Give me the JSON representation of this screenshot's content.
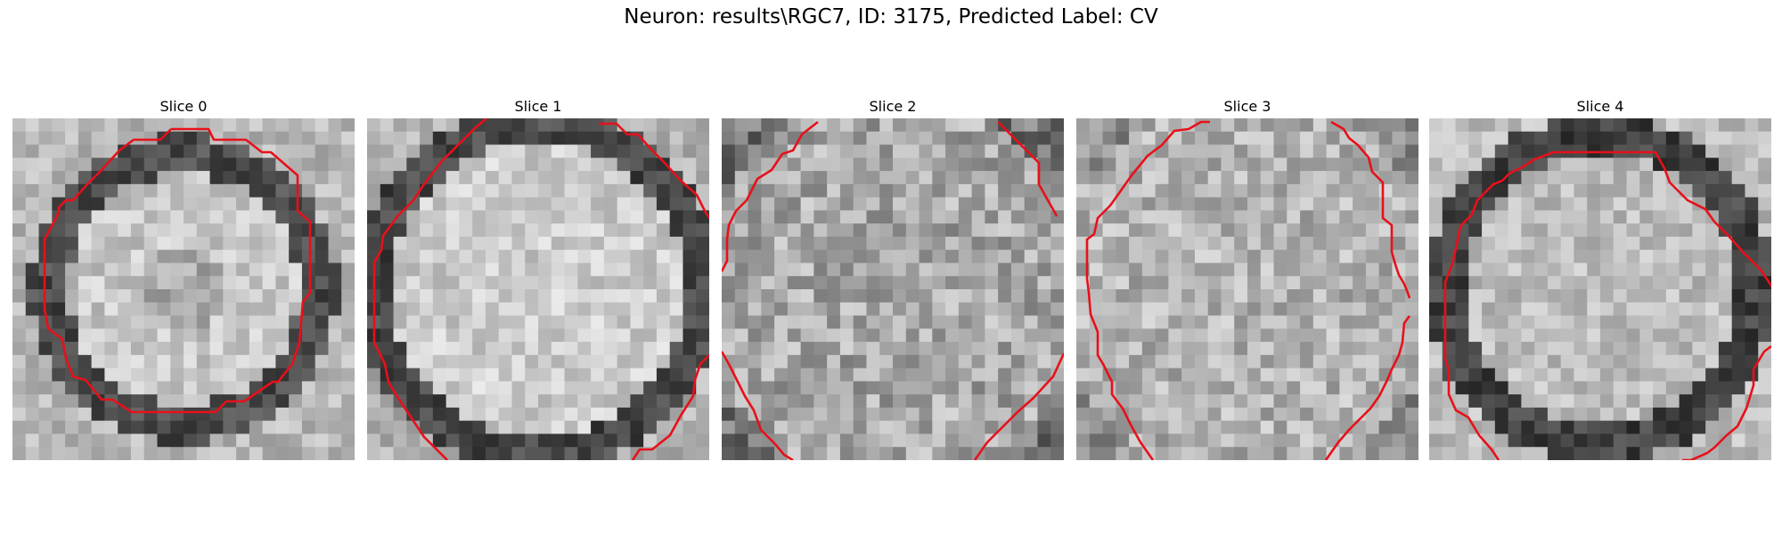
{
  "figure": {
    "title": "Neuron: results\\RGC7, ID: 3175, Predicted Label: CV"
  },
  "slices": [
    {
      "title": "Slice 0"
    },
    {
      "title": "Slice 1"
    },
    {
      "title": "Slice 2"
    },
    {
      "title": "Slice 3"
    },
    {
      "title": "Slice 4"
    }
  ],
  "colors": {
    "contour": "#e8101a",
    "background": "#ffffff"
  }
}
